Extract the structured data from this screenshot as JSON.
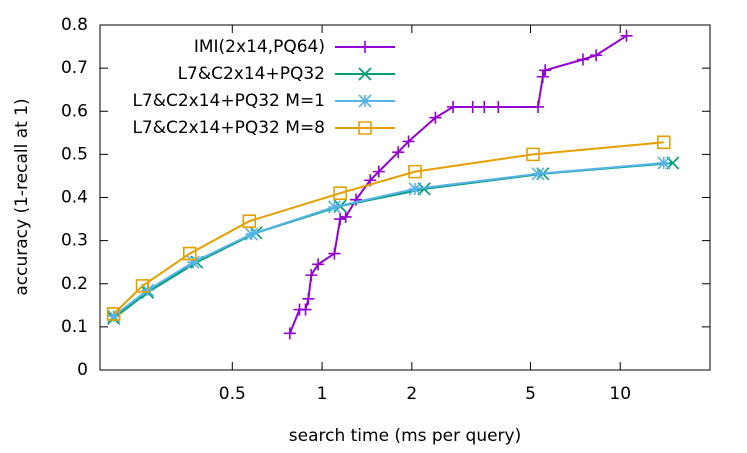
{
  "chart_data": {
    "type": "line",
    "x_label": "search time (ms per query)",
    "y_label": "accuracy (1-recall at 1)",
    "xlim": [
      0.18,
      20
    ],
    "ylim": [
      0,
      0.8
    ],
    "x_log": true,
    "grid": false,
    "legend": "top-center",
    "xticks": [
      0.5,
      1,
      2,
      5,
      10
    ],
    "yticks": [
      0,
      0.1,
      0.2,
      0.3,
      0.4,
      0.5,
      0.6,
      0.7,
      0.8
    ],
    "series": [
      {
        "name": "IMI(2x14,PQ64)",
        "color": "#9400d3",
        "marker": "plus",
        "x": [
          0.78,
          0.84,
          0.88,
          0.9,
          0.92,
          0.97,
          1.1,
          1.15,
          1.2,
          1.3,
          1.45,
          1.55,
          1.8,
          1.95,
          2.4,
          2.75,
          3.2,
          3.5,
          3.9,
          5.3,
          5.5,
          5.6,
          7.5,
          8.3,
          10.5
        ],
        "values": [
          0.085,
          0.14,
          0.14,
          0.165,
          0.22,
          0.245,
          0.27,
          0.35,
          0.355,
          0.395,
          0.44,
          0.46,
          0.505,
          0.53,
          0.585,
          0.61,
          0.61,
          0.61,
          0.61,
          0.61,
          0.68,
          0.695,
          0.72,
          0.73,
          0.775
        ]
      },
      {
        "name": "L7&C2x14+PQ32",
        "color": "#009e73",
        "marker": "cross",
        "x": [
          0.2,
          0.26,
          0.38,
          0.6,
          1.15,
          2.2,
          5.5,
          15
        ],
        "values": [
          0.12,
          0.18,
          0.25,
          0.318,
          0.38,
          0.42,
          0.455,
          0.48
        ]
      },
      {
        "name": "L7&C2x14+PQ32 M=1",
        "color": "#56b4e9",
        "marker": "star",
        "x": [
          0.2,
          0.26,
          0.37,
          0.58,
          1.1,
          2.05,
          5.3,
          14
        ],
        "values": [
          0.125,
          0.185,
          0.25,
          0.315,
          0.378,
          0.42,
          0.455,
          0.48
        ]
      },
      {
        "name": "L7&C2x14+PQ32 M=8",
        "color": "#e69f00",
        "marker": "square",
        "x": [
          0.2,
          0.25,
          0.36,
          0.57,
          1.15,
          2.05,
          5.1,
          14
        ],
        "values": [
          0.13,
          0.195,
          0.27,
          0.345,
          0.41,
          0.46,
          0.5,
          0.528
        ]
      }
    ]
  }
}
